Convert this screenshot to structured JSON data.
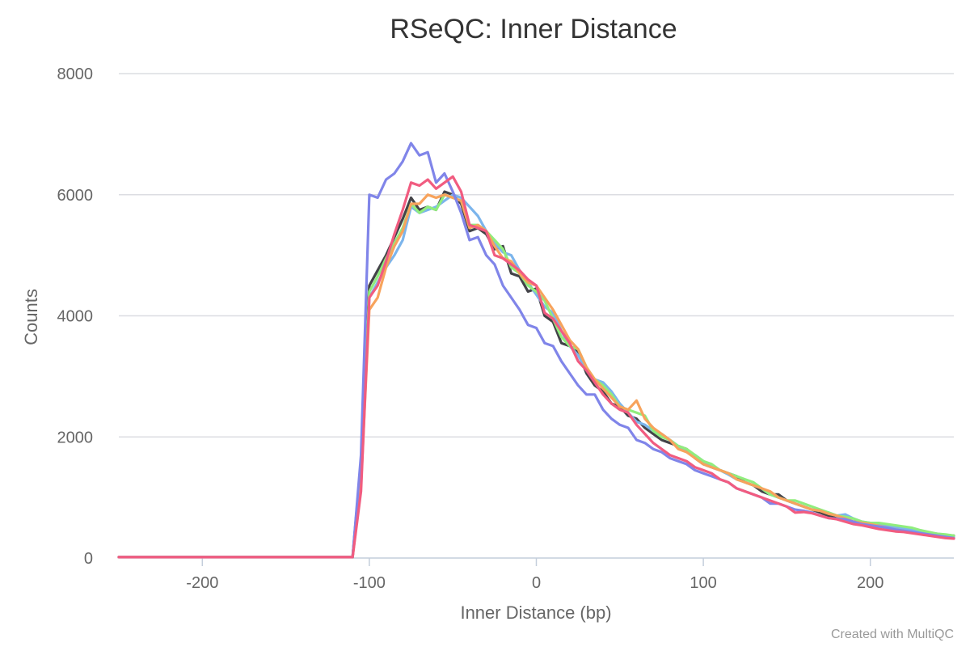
{
  "chart_data": {
    "type": "line",
    "title": "RSeQC: Inner Distance",
    "xlabel": "Inner Distance (bp)",
    "ylabel": "Counts",
    "xlim": [
      -250,
      250
    ],
    "ylim": [
      0,
      8000
    ],
    "x_ticks": [
      -200,
      -100,
      0,
      100,
      200
    ],
    "y_ticks": [
      0,
      2000,
      4000,
      6000,
      8000
    ],
    "grid": true,
    "legend": "none",
    "credit": "Created with MultiQC",
    "series": [
      {
        "color": "#434348",
        "x": [
          -250,
          -110,
          -105,
          -100,
          -95,
          -90,
          -85,
          -80,
          -75,
          -70,
          -65,
          -60,
          -55,
          -50,
          -45,
          -40,
          -35,
          -30,
          -25,
          -20,
          -15,
          -10,
          -5,
          0,
          5,
          10,
          15,
          20,
          25,
          30,
          35,
          40,
          45,
          50,
          55,
          60,
          65,
          70,
          75,
          80,
          85,
          90,
          95,
          100,
          105,
          110,
          115,
          120,
          125,
          130,
          135,
          140,
          145,
          150,
          155,
          160,
          165,
          170,
          175,
          180,
          185,
          190,
          195,
          200,
          205,
          210,
          215,
          220,
          225,
          230,
          235,
          240,
          245,
          250
        ],
        "y": [
          15,
          15,
          1600,
          4500,
          4750,
          5000,
          5300,
          5600,
          5950,
          5750,
          5800,
          5750,
          6050,
          6000,
          5850,
          5400,
          5450,
          5350,
          5100,
          5150,
          4700,
          4650,
          4400,
          4450,
          4000,
          3900,
          3550,
          3500,
          3400,
          3050,
          2850,
          2750,
          2550,
          2500,
          2350,
          2300,
          2150,
          2050,
          1950,
          1900,
          1850,
          1800,
          1650,
          1550,
          1500,
          1450,
          1400,
          1350,
          1250,
          1200,
          1100,
          1050,
          1050,
          950,
          900,
          850,
          800,
          750,
          700,
          650,
          650,
          600,
          600,
          550,
          550,
          500,
          480,
          470,
          450,
          420,
          400,
          390,
          380,
          370
        ]
      },
      {
        "color": "#7cb5ec",
        "x": [
          -250,
          -110,
          -105,
          -100,
          -95,
          -90,
          -85,
          -80,
          -75,
          -70,
          -65,
          -60,
          -55,
          -50,
          -45,
          -40,
          -35,
          -30,
          -25,
          -20,
          -15,
          -10,
          -5,
          0,
          5,
          10,
          15,
          20,
          25,
          30,
          35,
          40,
          45,
          50,
          55,
          60,
          65,
          70,
          75,
          80,
          85,
          90,
          95,
          100,
          105,
          110,
          115,
          120,
          125,
          130,
          135,
          140,
          145,
          150,
          155,
          160,
          165,
          170,
          175,
          180,
          185,
          190,
          195,
          200,
          205,
          210,
          215,
          220,
          225,
          230,
          235,
          240,
          245,
          250
        ],
        "y": [
          15,
          15,
          1500,
          4300,
          4550,
          4800,
          5000,
          5250,
          5800,
          5700,
          5750,
          5800,
          5900,
          6000,
          5950,
          5800,
          5650,
          5400,
          5200,
          5050,
          5000,
          4750,
          4550,
          4350,
          4150,
          4050,
          3750,
          3500,
          3350,
          3100,
          2950,
          2900,
          2750,
          2550,
          2400,
          2250,
          2200,
          2100,
          2050,
          1950,
          1850,
          1750,
          1700,
          1600,
          1500,
          1450,
          1380,
          1300,
          1250,
          1200,
          1150,
          1050,
          1000,
          950,
          900,
          850,
          800,
          780,
          750,
          700,
          720,
          650,
          600,
          580,
          560,
          540,
          510,
          490,
          460,
          430,
          410,
          400,
          380,
          360
        ]
      },
      {
        "color": "#90ed7d",
        "x": [
          -250,
          -110,
          -105,
          -100,
          -95,
          -90,
          -85,
          -80,
          -75,
          -70,
          -65,
          -60,
          -55,
          -50,
          -45,
          -40,
          -35,
          -30,
          -25,
          -20,
          -15,
          -10,
          -5,
          0,
          5,
          10,
          15,
          20,
          25,
          30,
          35,
          40,
          45,
          50,
          55,
          60,
          65,
          70,
          75,
          80,
          85,
          90,
          95,
          100,
          105,
          110,
          115,
          120,
          125,
          130,
          135,
          140,
          145,
          150,
          155,
          160,
          165,
          170,
          175,
          180,
          185,
          190,
          195,
          200,
          205,
          210,
          215,
          220,
          225,
          230,
          235,
          240,
          245,
          250
        ],
        "y": [
          15,
          15,
          1550,
          4400,
          4650,
          4950,
          5200,
          5450,
          5850,
          5700,
          5800,
          5750,
          6000,
          5950,
          5900,
          5500,
          5500,
          5400,
          5250,
          5100,
          4800,
          4700,
          4500,
          4400,
          4250,
          3950,
          3650,
          3500,
          3450,
          3150,
          2950,
          2850,
          2700,
          2500,
          2450,
          2400,
          2350,
          2100,
          2000,
          1950,
          1850,
          1800,
          1700,
          1600,
          1550,
          1450,
          1400,
          1350,
          1300,
          1250,
          1150,
          1050,
          1000,
          950,
          950,
          900,
          850,
          800,
          750,
          700,
          680,
          650,
          600,
          580,
          580,
          560,
          540,
          520,
          500,
          460,
          430,
          400,
          390,
          370
        ]
      },
      {
        "color": "#f7a35c",
        "x": [
          -250,
          -110,
          -105,
          -100,
          -95,
          -90,
          -85,
          -80,
          -75,
          -70,
          -65,
          -60,
          -55,
          -50,
          -45,
          -40,
          -35,
          -30,
          -25,
          -20,
          -15,
          -10,
          -5,
          0,
          5,
          10,
          15,
          20,
          25,
          30,
          35,
          40,
          45,
          50,
          55,
          60,
          65,
          70,
          75,
          80,
          85,
          90,
          95,
          100,
          105,
          110,
          115,
          120,
          125,
          130,
          135,
          140,
          145,
          150,
          155,
          160,
          165,
          170,
          175,
          180,
          185,
          190,
          195,
          200,
          205,
          210,
          215,
          220,
          225,
          230,
          235,
          240,
          245,
          250
        ],
        "y": [
          15,
          15,
          1200,
          4100,
          4300,
          4800,
          5150,
          5400,
          5850,
          5850,
          6000,
          5950,
          6000,
          5950,
          5900,
          5450,
          5500,
          5400,
          5150,
          4950,
          4900,
          4700,
          4550,
          4500,
          4300,
          4100,
          3850,
          3600,
          3450,
          3150,
          2950,
          2800,
          2650,
          2500,
          2450,
          2600,
          2300,
          2150,
          2050,
          1950,
          1800,
          1750,
          1650,
          1550,
          1500,
          1450,
          1400,
          1300,
          1250,
          1200,
          1150,
          1100,
          1000,
          950,
          900,
          850,
          800,
          780,
          730,
          700,
          650,
          600,
          580,
          560,
          530,
          500,
          470,
          450,
          420,
          400,
          380,
          360,
          340,
          330
        ]
      },
      {
        "color": "#8085e9",
        "x": [
          -250,
          -110,
          -105,
          -100,
          -95,
          -90,
          -85,
          -80,
          -75,
          -70,
          -65,
          -60,
          -55,
          -50,
          -45,
          -40,
          -35,
          -30,
          -25,
          -20,
          -15,
          -10,
          -5,
          0,
          5,
          10,
          15,
          20,
          25,
          30,
          35,
          40,
          45,
          50,
          55,
          60,
          65,
          70,
          75,
          80,
          85,
          90,
          95,
          100,
          105,
          110,
          115,
          120,
          125,
          130,
          135,
          140,
          145,
          150,
          155,
          160,
          165,
          170,
          175,
          180,
          185,
          190,
          195,
          200,
          205,
          210,
          215,
          220,
          225,
          230,
          235,
          240,
          245,
          250
        ],
        "y": [
          15,
          15,
          1700,
          6000,
          5950,
          6250,
          6350,
          6550,
          6850,
          6650,
          6700,
          6200,
          6350,
          6050,
          5700,
          5250,
          5300,
          5000,
          4850,
          4500,
          4300,
          4100,
          3850,
          3800,
          3550,
          3500,
          3250,
          3050,
          2850,
          2700,
          2700,
          2450,
          2300,
          2200,
          2150,
          1950,
          1900,
          1800,
          1750,
          1650,
          1600,
          1550,
          1450,
          1400,
          1350,
          1300,
          1250,
          1150,
          1100,
          1050,
          1000,
          900,
          900,
          850,
          800,
          780,
          750,
          700,
          660,
          650,
          640,
          600,
          560,
          540,
          520,
          500,
          470,
          450,
          430,
          410,
          390,
          370,
          350,
          330
        ]
      },
      {
        "color": "#f15c80",
        "x": [
          -250,
          -110,
          -105,
          -100,
          -95,
          -90,
          -85,
          -80,
          -75,
          -70,
          -65,
          -60,
          -55,
          -50,
          -45,
          -40,
          -35,
          -30,
          -25,
          -20,
          -15,
          -10,
          -5,
          0,
          5,
          10,
          15,
          20,
          25,
          30,
          35,
          40,
          45,
          50,
          55,
          60,
          65,
          70,
          75,
          80,
          85,
          90,
          95,
          100,
          105,
          110,
          115,
          120,
          125,
          130,
          135,
          140,
          145,
          150,
          155,
          160,
          165,
          170,
          175,
          180,
          185,
          190,
          195,
          200,
          205,
          210,
          215,
          220,
          225,
          230,
          235,
          240,
          245,
          250
        ],
        "y": [
          15,
          15,
          1100,
          4300,
          4500,
          4900,
          5350,
          5750,
          6200,
          6150,
          6250,
          6100,
          6200,
          6300,
          6050,
          5500,
          5450,
          5400,
          5000,
          4950,
          4850,
          4750,
          4600,
          4500,
          4050,
          3950,
          3750,
          3550,
          3250,
          3100,
          2900,
          2700,
          2550,
          2450,
          2400,
          2200,
          2050,
          1900,
          1800,
          1700,
          1650,
          1600,
          1500,
          1450,
          1400,
          1300,
          1250,
          1150,
          1100,
          1050,
          1000,
          950,
          900,
          850,
          750,
          760,
          740,
          700,
          660,
          640,
          600,
          560,
          540,
          510,
          480,
          460,
          440,
          430,
          410,
          390,
          370,
          350,
          330,
          320
        ]
      }
    ]
  }
}
